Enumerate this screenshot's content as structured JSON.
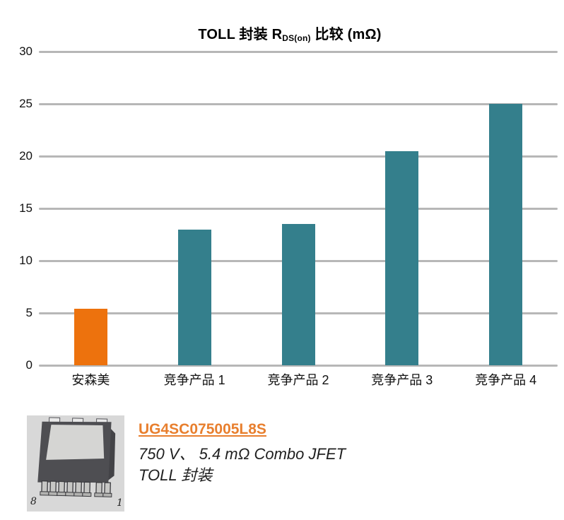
{
  "chart": {
    "title_prefix": "TOLL 封装 R",
    "title_sub": "DS(on)",
    "title_suffix": " 比较 (mΩ)"
  },
  "chart_data": {
    "type": "bar",
    "title": "TOLL 封装 RDS(on) 比较 (mΩ)",
    "categories": [
      "安森美",
      "竞争产品 1",
      "竞争产品 2",
      "竞争产品 3",
      "竞争产品 4"
    ],
    "values": [
      5.4,
      13,
      13.5,
      20.5,
      25
    ],
    "bar_colors": [
      "#ED720D",
      "#347F8C",
      "#347F8C",
      "#347F8C",
      "#347F8C"
    ],
    "xlabel": "",
    "ylabel": "",
    "ylim": [
      0,
      30
    ],
    "yticks": [
      0,
      5,
      10,
      15,
      20,
      25,
      30
    ],
    "grid": true,
    "legend": false
  },
  "colors": {
    "onsemi_orange": "#ED720D",
    "competitor_teal": "#347F8C",
    "gridline_gray": "#B7B7B7",
    "link_orange": "#E87F2E",
    "chip_body_dark": "#4E4E52",
    "chip_pad_light": "#D5D5D3",
    "chip_background": "#D8D8D8"
  },
  "product": {
    "part_number": "UG4SC075005L8S",
    "spec_line": "750 V、 5.4 mΩ Combo JFET",
    "package_line": "TOLL 封装",
    "image": {
      "pin_left_label": "8",
      "pin_right_label": "1"
    }
  }
}
